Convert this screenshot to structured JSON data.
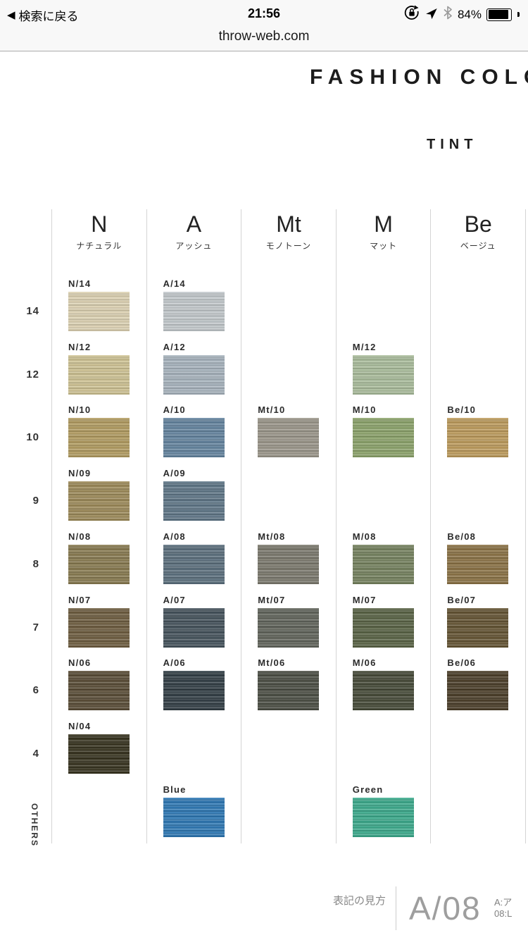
{
  "status_bar": {
    "back_label": "検索に戻る",
    "back_icon": "◀",
    "time": "21:56",
    "battery_percent": "84%"
  },
  "url_bar": {
    "url": "throw-web.com"
  },
  "header": {
    "brand_title": "FASHION COLOR",
    "collection_title": "TINT"
  },
  "palette": {
    "columns": [
      {
        "code": "N",
        "name_kana": "ナチュラル"
      },
      {
        "code": "A",
        "name_kana": "アッシュ"
      },
      {
        "code": "Mt",
        "name_kana": "モノトーン"
      },
      {
        "code": "M",
        "name_kana": "マット"
      },
      {
        "code": "Be",
        "name_kana": "ベージュ"
      }
    ],
    "rows": [
      {
        "level": "14",
        "cells": [
          {
            "label": "N/14",
            "color": "#ddd2b3"
          },
          {
            "label": "A/14",
            "color": "#c3c9cc"
          },
          null,
          null,
          null
        ]
      },
      {
        "level": "12",
        "cells": [
          {
            "label": "N/12",
            "color": "#cfc394"
          },
          {
            "label": "A/12",
            "color": "#a8b4be"
          },
          null,
          {
            "label": "M/12",
            "color": "#aabd9c"
          },
          null
        ]
      },
      {
        "level": "10",
        "cells": [
          {
            "label": "N/10",
            "color": "#b29c61"
          },
          {
            "label": "A/10",
            "color": "#64849f"
          },
          {
            "label": "Mt/10",
            "color": "#9b968a"
          },
          {
            "label": "M/10",
            "color": "#8ca36b"
          },
          {
            "label": "Be/10",
            "color": "#bd9b5c"
          }
        ]
      },
      {
        "level": "9",
        "cells": [
          {
            "label": "N/09",
            "color": "#9d8a59"
          },
          {
            "label": "A/09",
            "color": "#5f7687"
          },
          null,
          null,
          null
        ]
      },
      {
        "level": "8",
        "cells": [
          {
            "label": "N/08",
            "color": "#887a50"
          },
          {
            "label": "A/08",
            "color": "#5b6f7d"
          },
          {
            "label": "Mt/08",
            "color": "#7b796d"
          },
          {
            "label": "M/08",
            "color": "#75825f"
          },
          {
            "label": "Be/08",
            "color": "#8b7245"
          }
        ]
      },
      {
        "level": "7",
        "cells": [
          {
            "label": "N/07",
            "color": "#6e5d40"
          },
          {
            "label": "A/07",
            "color": "#45535c"
          },
          {
            "label": "Mt/07",
            "color": "#61645b"
          },
          {
            "label": "M/07",
            "color": "#596345"
          },
          {
            "label": "Be/07",
            "color": "#645433"
          }
        ]
      },
      {
        "level": "6",
        "cells": [
          {
            "label": "N/06",
            "color": "#594c36"
          },
          {
            "label": "A/06",
            "color": "#323e45"
          },
          {
            "label": "Mt/06",
            "color": "#4b4e44"
          },
          {
            "label": "M/06",
            "color": "#464a38"
          },
          {
            "label": "Be/06",
            "color": "#4b3e29"
          }
        ]
      },
      {
        "level": "4",
        "cells": [
          {
            "label": "N/04",
            "color": "#37331f"
          },
          null,
          null,
          null,
          null
        ]
      },
      {
        "level": "OTHERS",
        "cells": [
          null,
          {
            "label": "Blue",
            "color": "#2e78b4"
          },
          null,
          {
            "label": "Green",
            "color": "#3caa8c"
          },
          null
        ]
      }
    ],
    "divider_color": "#d4d4d4"
  },
  "footer": {
    "legend_label": "表記の見方",
    "example_code": "A/08",
    "note_line1": "A:ア",
    "note_line2": "08:L"
  }
}
